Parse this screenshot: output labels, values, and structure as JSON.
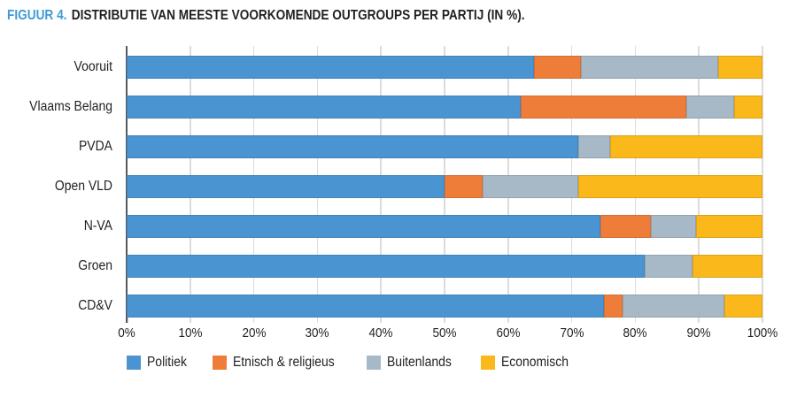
{
  "header": {
    "figure_label": "FIGUUR 4.",
    "title": "DISTRIBUTIE VAN MEESTE VOORKOMENDE OUTGROUPS PER PARTIJ (IN %)."
  },
  "colors": {
    "figure_label_blue": "#3e9bd6",
    "text_dark": "#231f20",
    "gridline": "#dcdcdc",
    "axis_line": "#595959",
    "politiek": "#4a94d2",
    "etnisch_religieus": "#ef7d3a",
    "buitenlands": "#a7b9c6",
    "economisch": "#fbb81b"
  },
  "chart_data": {
    "type": "bar",
    "variant": "horizontal-stacked",
    "title": "Distributie van meeste voorkomende outgroups per partij (in %)",
    "categories": [
      "Vooruit",
      "Vlaams Belang",
      "PVDA",
      "Open VLD",
      "N-VA",
      "Groen",
      "CD&V"
    ],
    "series": [
      {
        "name": "Politiek",
        "color": "#4a94d2",
        "values": [
          64,
          62,
          71,
          50,
          74.5,
          81.5,
          75
        ]
      },
      {
        "name": "Etnisch & religieus",
        "color": "#ef7d3a",
        "values": [
          7.5,
          26,
          0,
          6,
          8,
          0,
          3
        ]
      },
      {
        "name": "Buitenlands",
        "color": "#a7b9c6",
        "values": [
          21.5,
          7.5,
          5,
          15,
          7,
          7.5,
          16
        ]
      },
      {
        "name": "Economisch",
        "color": "#fbb81b",
        "values": [
          7,
          4.5,
          24,
          29,
          10.5,
          11,
          6
        ]
      }
    ],
    "xlim": [
      0,
      100
    ],
    "x_ticks": [
      "0%",
      "10%",
      "20%",
      "30%",
      "40%",
      "50%",
      "60%",
      "70%",
      "80%",
      "90%",
      "100%"
    ],
    "grid": "vertical",
    "legend_position": "bottom"
  }
}
